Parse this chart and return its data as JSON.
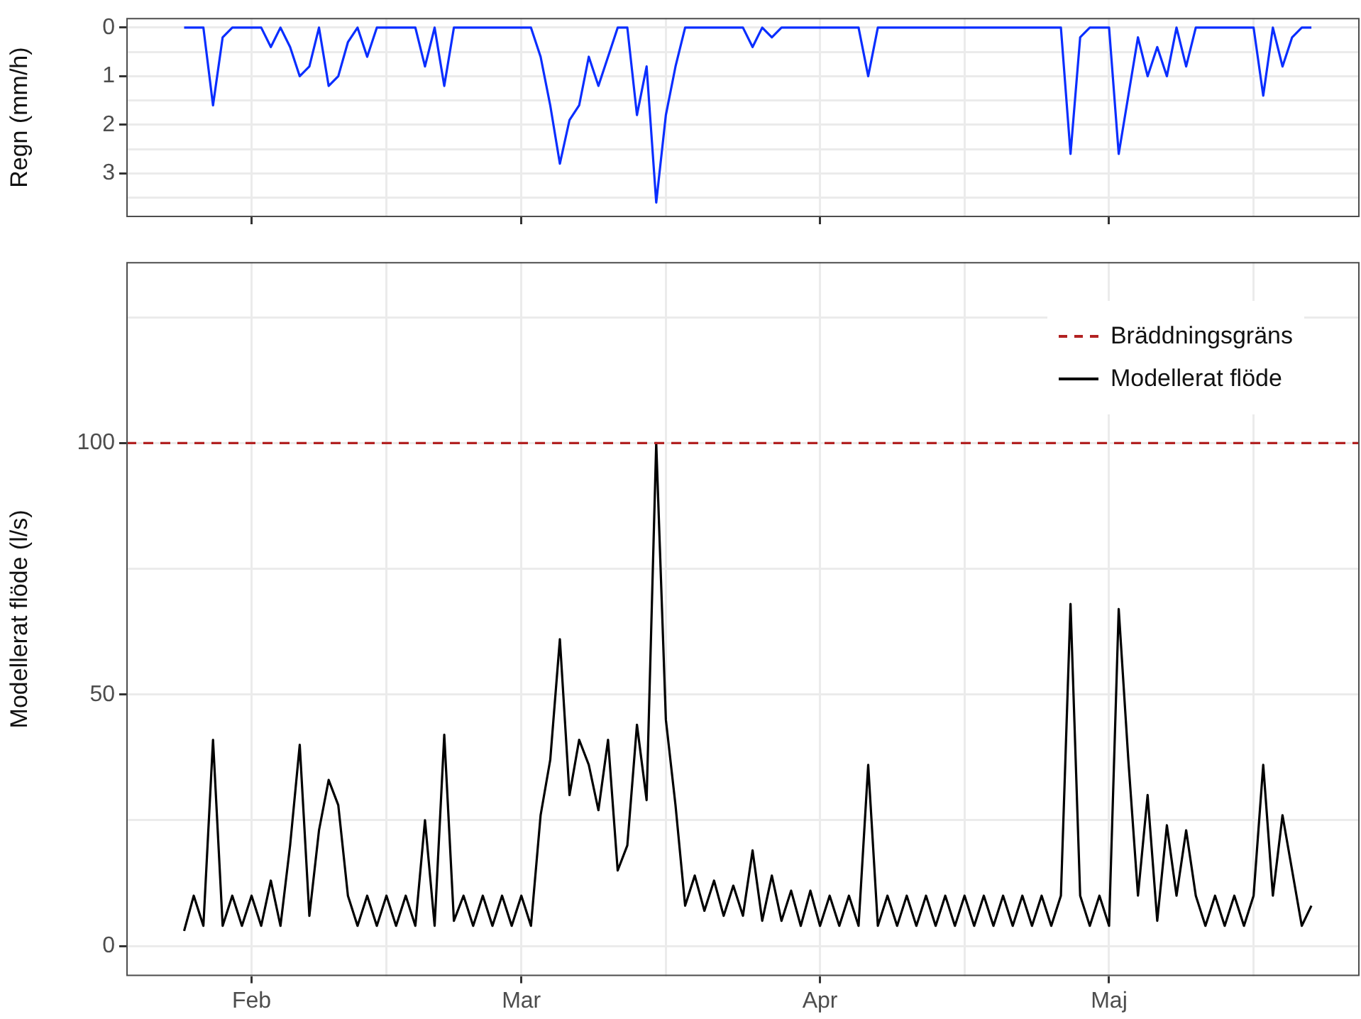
{
  "chart_data": [
    {
      "type": "line",
      "ylabel": "Regn (mm/h)",
      "x": [
        "--01-25",
        "--01-26",
        "--01-27",
        "--01-28",
        "--01-29",
        "--01-30",
        "--01-31",
        "--02-01",
        "--02-02",
        "--02-03",
        "--02-04",
        "--02-05",
        "--02-06",
        "--02-07",
        "--02-08",
        "--02-09",
        "--02-10",
        "--02-11",
        "--02-12",
        "--02-13",
        "--02-14",
        "--02-15",
        "--02-16",
        "--02-17",
        "--02-18",
        "--02-19",
        "--02-20",
        "--02-21",
        "--02-22",
        "--02-23",
        "--02-24",
        "--02-25",
        "--02-26",
        "--02-27",
        "--02-28",
        "--03-01",
        "--03-02",
        "--03-03",
        "--03-04",
        "--03-05",
        "--03-06",
        "--03-07",
        "--03-08",
        "--03-09",
        "--03-10",
        "--03-11",
        "--03-12",
        "--03-13",
        "--03-14",
        "--03-15",
        "--03-16",
        "--03-17",
        "--03-18",
        "--03-19",
        "--03-20",
        "--03-21",
        "--03-22",
        "--03-23",
        "--03-24",
        "--03-25",
        "--03-26",
        "--03-27",
        "--03-28",
        "--03-29",
        "--03-30",
        "--03-31",
        "--04-01",
        "--04-02",
        "--04-03",
        "--04-04",
        "--04-05",
        "--04-06",
        "--04-07",
        "--04-08",
        "--04-09",
        "--04-10",
        "--04-11",
        "--04-12",
        "--04-13",
        "--04-14",
        "--04-15",
        "--04-16",
        "--04-17",
        "--04-18",
        "--04-19",
        "--04-20",
        "--04-21",
        "--04-22",
        "--04-23",
        "--04-24",
        "--04-25",
        "--04-26",
        "--04-27",
        "--04-28",
        "--04-29",
        "--04-30",
        "--05-01",
        "--05-02",
        "--05-03",
        "--05-04",
        "--05-05",
        "--05-06",
        "--05-07",
        "--05-08",
        "--05-09",
        "--05-10",
        "--05-11",
        "--05-12",
        "--05-13",
        "--05-14",
        "--05-15",
        "--05-16",
        "--05-17",
        "--05-18",
        "--05-19",
        "--05-20",
        "--05-21",
        "--05-22"
      ],
      "series": [
        {
          "color": "#0a2eff",
          "values": [
            0,
            0,
            0,
            1.6,
            0.2,
            0,
            0,
            0,
            0,
            0.4,
            0,
            0.4,
            1.0,
            0.8,
            0,
            1.2,
            1.0,
            0.3,
            0,
            0.6,
            0,
            0,
            0,
            0,
            0,
            0.8,
            0,
            1.2,
            0,
            0,
            0,
            0,
            0,
            0,
            0,
            0,
            0,
            0.6,
            1.6,
            2.8,
            1.9,
            1.6,
            0.6,
            1.2,
            0.6,
            0,
            0,
            1.8,
            0.8,
            3.6,
            1.8,
            0.8,
            0,
            0,
            0,
            0,
            0,
            0,
            0,
            0.4,
            0,
            0.2,
            0,
            0,
            0,
            0,
            0,
            0,
            0,
            0,
            0,
            1.0,
            0,
            0,
            0,
            0,
            0,
            0,
            0,
            0,
            0,
            0,
            0,
            0,
            0,
            0,
            0,
            0,
            0,
            0,
            0,
            0,
            2.6,
            0.2,
            0,
            0,
            0,
            2.6,
            1.4,
            0.2,
            1.0,
            0.4,
            1.0,
            0,
            0.8,
            0,
            0,
            0,
            0,
            0,
            0,
            0,
            1.4,
            0,
            0.8,
            0.2,
            0,
            0
          ]
        }
      ],
      "xlim": [
        "--01-19",
        "--05-27"
      ],
      "xticks": [
        {
          "value": "--02-01",
          "label": "Feb"
        },
        {
          "value": "--02-15",
          "label": null
        },
        {
          "value": "--03-01",
          "label": "Mar"
        },
        {
          "value": "--03-16",
          "label": null
        },
        {
          "value": "--04-01",
          "label": "Apr"
        },
        {
          "value": "--04-16",
          "label": null
        },
        {
          "value": "--05-01",
          "label": "Maj"
        },
        {
          "value": "--05-16",
          "label": null
        }
      ],
      "ylim": [
        3.9,
        -0.2
      ],
      "yticks": [
        0,
        {
          "value": 0.5,
          "label": null
        },
        1,
        {
          "value": 1.5,
          "label": null
        },
        2,
        {
          "value": 2.5,
          "label": null
        },
        3,
        {
          "value": 3.5,
          "label": null
        }
      ],
      "grid": true,
      "tick_labels": "y"
    },
    {
      "type": "line",
      "ylabel": "Modellerat flöde (l/s)",
      "x": [
        "--01-25",
        "--01-26",
        "--01-27",
        "--01-28",
        "--01-29",
        "--01-30",
        "--01-31",
        "--02-01",
        "--02-02",
        "--02-03",
        "--02-04",
        "--02-05",
        "--02-06",
        "--02-07",
        "--02-08",
        "--02-09",
        "--02-10",
        "--02-11",
        "--02-12",
        "--02-13",
        "--02-14",
        "--02-15",
        "--02-16",
        "--02-17",
        "--02-18",
        "--02-19",
        "--02-20",
        "--02-21",
        "--02-22",
        "--02-23",
        "--02-24",
        "--02-25",
        "--02-26",
        "--02-27",
        "--02-28",
        "--03-01",
        "--03-02",
        "--03-03",
        "--03-04",
        "--03-05",
        "--03-06",
        "--03-07",
        "--03-08",
        "--03-09",
        "--03-10",
        "--03-11",
        "--03-12",
        "--03-13",
        "--03-14",
        "--03-15",
        "--03-16",
        "--03-17",
        "--03-18",
        "--03-19",
        "--03-20",
        "--03-21",
        "--03-22",
        "--03-23",
        "--03-24",
        "--03-25",
        "--03-26",
        "--03-27",
        "--03-28",
        "--03-29",
        "--03-30",
        "--03-31",
        "--04-01",
        "--04-02",
        "--04-03",
        "--04-04",
        "--04-05",
        "--04-06",
        "--04-07",
        "--04-08",
        "--04-09",
        "--04-10",
        "--04-11",
        "--04-12",
        "--04-13",
        "--04-14",
        "--04-15",
        "--04-16",
        "--04-17",
        "--04-18",
        "--04-19",
        "--04-20",
        "--04-21",
        "--04-22",
        "--04-23",
        "--04-24",
        "--04-25",
        "--04-26",
        "--04-27",
        "--04-28",
        "--04-29",
        "--04-30",
        "--05-01",
        "--05-02",
        "--05-03",
        "--05-04",
        "--05-05",
        "--05-06",
        "--05-07",
        "--05-08",
        "--05-09",
        "--05-10",
        "--05-11",
        "--05-12",
        "--05-13",
        "--05-14",
        "--05-15",
        "--05-16",
        "--05-17",
        "--05-18",
        "--05-19",
        "--05-20",
        "--05-21",
        "--05-22"
      ],
      "series": [
        {
          "name": "Modellerat flöde",
          "color": "#000000",
          "values": [
            3,
            10,
            4,
            41,
            4,
            10,
            4,
            10,
            4,
            13,
            4,
            20,
            40,
            6,
            23,
            33,
            28,
            10,
            4,
            10,
            4,
            10,
            4,
            10,
            4,
            25,
            4,
            42,
            5,
            10,
            4,
            10,
            4,
            10,
            4,
            10,
            4,
            26,
            37,
            61,
            30,
            41,
            36,
            27,
            41,
            15,
            20,
            44,
            29,
            100,
            45,
            28,
            8,
            14,
            7,
            13,
            6,
            12,
            6,
            19,
            5,
            14,
            5,
            11,
            4,
            11,
            4,
            10,
            4,
            10,
            4,
            36,
            4,
            10,
            4,
            10,
            4,
            10,
            4,
            10,
            4,
            10,
            4,
            10,
            4,
            10,
            4,
            10,
            4,
            10,
            4,
            10,
            68,
            10,
            4,
            10,
            4,
            67,
            37,
            10,
            30,
            5,
            24,
            10,
            23,
            10,
            4,
            10,
            4,
            10,
            4,
            10,
            36,
            10,
            26,
            15,
            4,
            8
          ]
        }
      ],
      "ref_lines": [
        {
          "axis": "y",
          "value": 100,
          "label": "Bräddningsgräns",
          "color": "#b22222",
          "line_style": "dashed"
        }
      ],
      "xlim": [
        "--01-19",
        "--05-27"
      ],
      "xticks": [
        {
          "value": "--02-01",
          "label": "Feb"
        },
        {
          "value": "--02-15",
          "label": null
        },
        {
          "value": "--03-01",
          "label": "Mar"
        },
        {
          "value": "--03-16",
          "label": null
        },
        {
          "value": "--04-01",
          "label": "Apr"
        },
        {
          "value": "--04-16",
          "label": null
        },
        {
          "value": "--05-01",
          "label": "Maj"
        },
        {
          "value": "--05-16",
          "label": null
        }
      ],
      "ylim": [
        -6,
        136
      ],
      "yticks": [
        0,
        {
          "value": 25,
          "label": null
        },
        50,
        {
          "value": 75,
          "label": null
        },
        100,
        {
          "value": 125,
          "label": null
        }
      ],
      "grid": true,
      "legend": "top right"
    }
  ]
}
